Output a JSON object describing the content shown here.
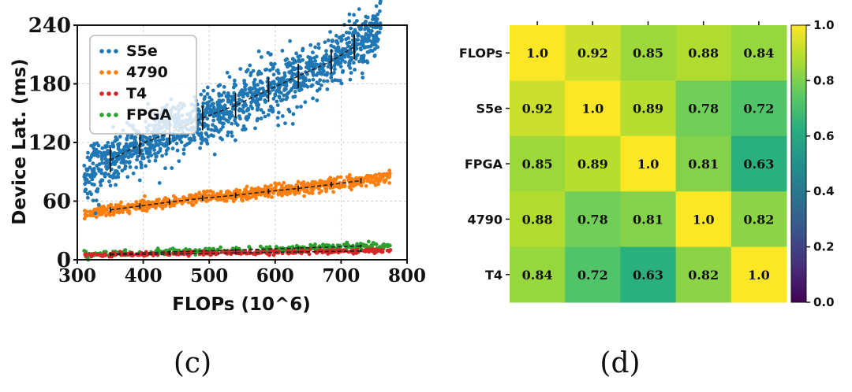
{
  "chart_data": [
    {
      "type": "scatter",
      "panel_label": "(c)",
      "title": "",
      "xlabel": "FLOPs (10^6)",
      "ylabel": "Device Lat. (ms)",
      "xlim": [
        300,
        800
      ],
      "ylim": [
        0,
        240
      ],
      "x_ticks": [
        "300",
        "400",
        "500",
        "600",
        "700",
        "800"
      ],
      "y_ticks": [
        "0",
        "60",
        "120",
        "180",
        "240"
      ],
      "grid": true,
      "legend_position": "top-left",
      "series": [
        {
          "name": "S5e",
          "color": "#1f77b4",
          "x_range": [
            310,
            760
          ],
          "trend": [
            [
              350,
              102
            ],
            [
              395,
              118
            ],
            [
              440,
              130
            ],
            [
              490,
              145
            ],
            [
              540,
              158
            ],
            [
              590,
              174
            ],
            [
              635,
              188
            ],
            [
              685,
              203
            ],
            [
              720,
              218
            ]
          ],
          "spread": 14
        },
        {
          "name": "4790",
          "color": "#ff7f0e",
          "x_range": [
            310,
            775
          ],
          "trend": [
            [
              350,
              51
            ],
            [
              395,
              55
            ],
            [
              440,
              59
            ],
            [
              490,
              63
            ],
            [
              540,
              66
            ],
            [
              590,
              70
            ],
            [
              635,
              73
            ],
            [
              685,
              77
            ],
            [
              730,
              81
            ]
          ],
          "spread": 3
        },
        {
          "name": "T4",
          "color": "#d62728",
          "x_range": [
            310,
            775
          ],
          "trend": [
            [
              350,
              5
            ],
            [
              440,
              6
            ],
            [
              540,
              7
            ],
            [
              635,
              8
            ],
            [
              730,
              9
            ]
          ],
          "spread": 1
        },
        {
          "name": "FPGA",
          "color": "#2ca02c",
          "x_range": [
            310,
            775
          ],
          "trend": [
            [
              350,
              6
            ],
            [
              440,
              8
            ],
            [
              540,
              10
            ],
            [
              635,
              12
            ],
            [
              730,
              14
            ]
          ],
          "spread": 1.5
        }
      ]
    },
    {
      "type": "heatmap",
      "panel_label": "(d)",
      "row_labels": [
        "FLOPs",
        "S5e",
        "FPGA",
        "4790",
        "T4"
      ],
      "values": [
        [
          1.0,
          0.92,
          0.85,
          0.88,
          0.84
        ],
        [
          0.92,
          1.0,
          0.89,
          0.78,
          0.72
        ],
        [
          0.85,
          0.89,
          1.0,
          0.81,
          0.63
        ],
        [
          0.88,
          0.78,
          0.81,
          1.0,
          0.82
        ],
        [
          0.84,
          0.72,
          0.63,
          0.82,
          1.0
        ]
      ],
      "value_labels": [
        [
          "1.0",
          "0.92",
          "0.85",
          "0.88",
          "0.84"
        ],
        [
          "0.92",
          "1.0",
          "0.89",
          "0.78",
          "0.72"
        ],
        [
          "0.85",
          "0.89",
          "1.0",
          "0.81",
          "0.63"
        ],
        [
          "0.88",
          "0.78",
          "0.81",
          "1.0",
          "0.82"
        ],
        [
          "0.84",
          "0.72",
          "0.63",
          "0.82",
          "1.0"
        ]
      ],
      "colorbar_range": [
        0.0,
        1.0
      ],
      "colorbar_ticks": [
        "0.0",
        "0.2",
        "0.4",
        "0.6",
        "0.8",
        "1.0"
      ],
      "colormap": "viridis"
    }
  ]
}
